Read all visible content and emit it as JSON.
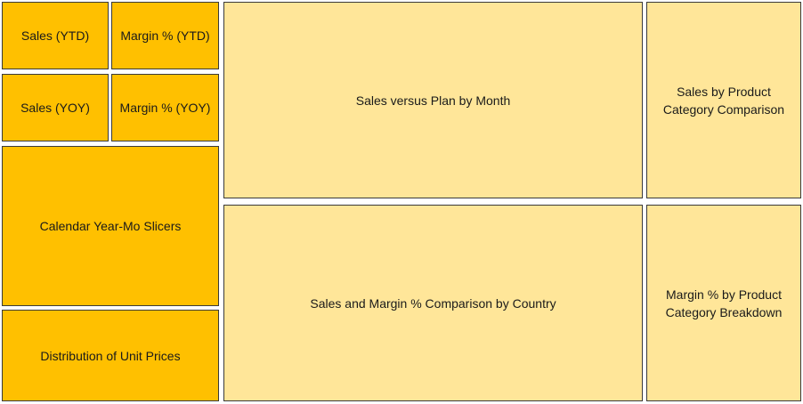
{
  "tiles": {
    "sales_ytd": "Sales (YTD)",
    "margin_ytd": "Margin % (YTD)",
    "sales_yoy": "Sales (YOY)",
    "margin_yoy": "Margin % (YOY)",
    "calendar_slicers": "Calendar Year-Mo Slicers",
    "unit_prices": "Distribution of Unit Prices",
    "sales_vs_plan": "Sales versus Plan by Month",
    "sales_by_category_line1": "Sales by Product",
    "sales_by_category_line2": "Category Comparison",
    "sales_margin_country": "Sales and Margin % Comparison by Country",
    "margin_by_category_line1": "Margin % by Product",
    "margin_by_category_line2": "Category Breakdown"
  },
  "colors": {
    "kpi_fill": "#ffc000",
    "chart_fill": "#ffe699",
    "border": "#3a3a3a"
  }
}
